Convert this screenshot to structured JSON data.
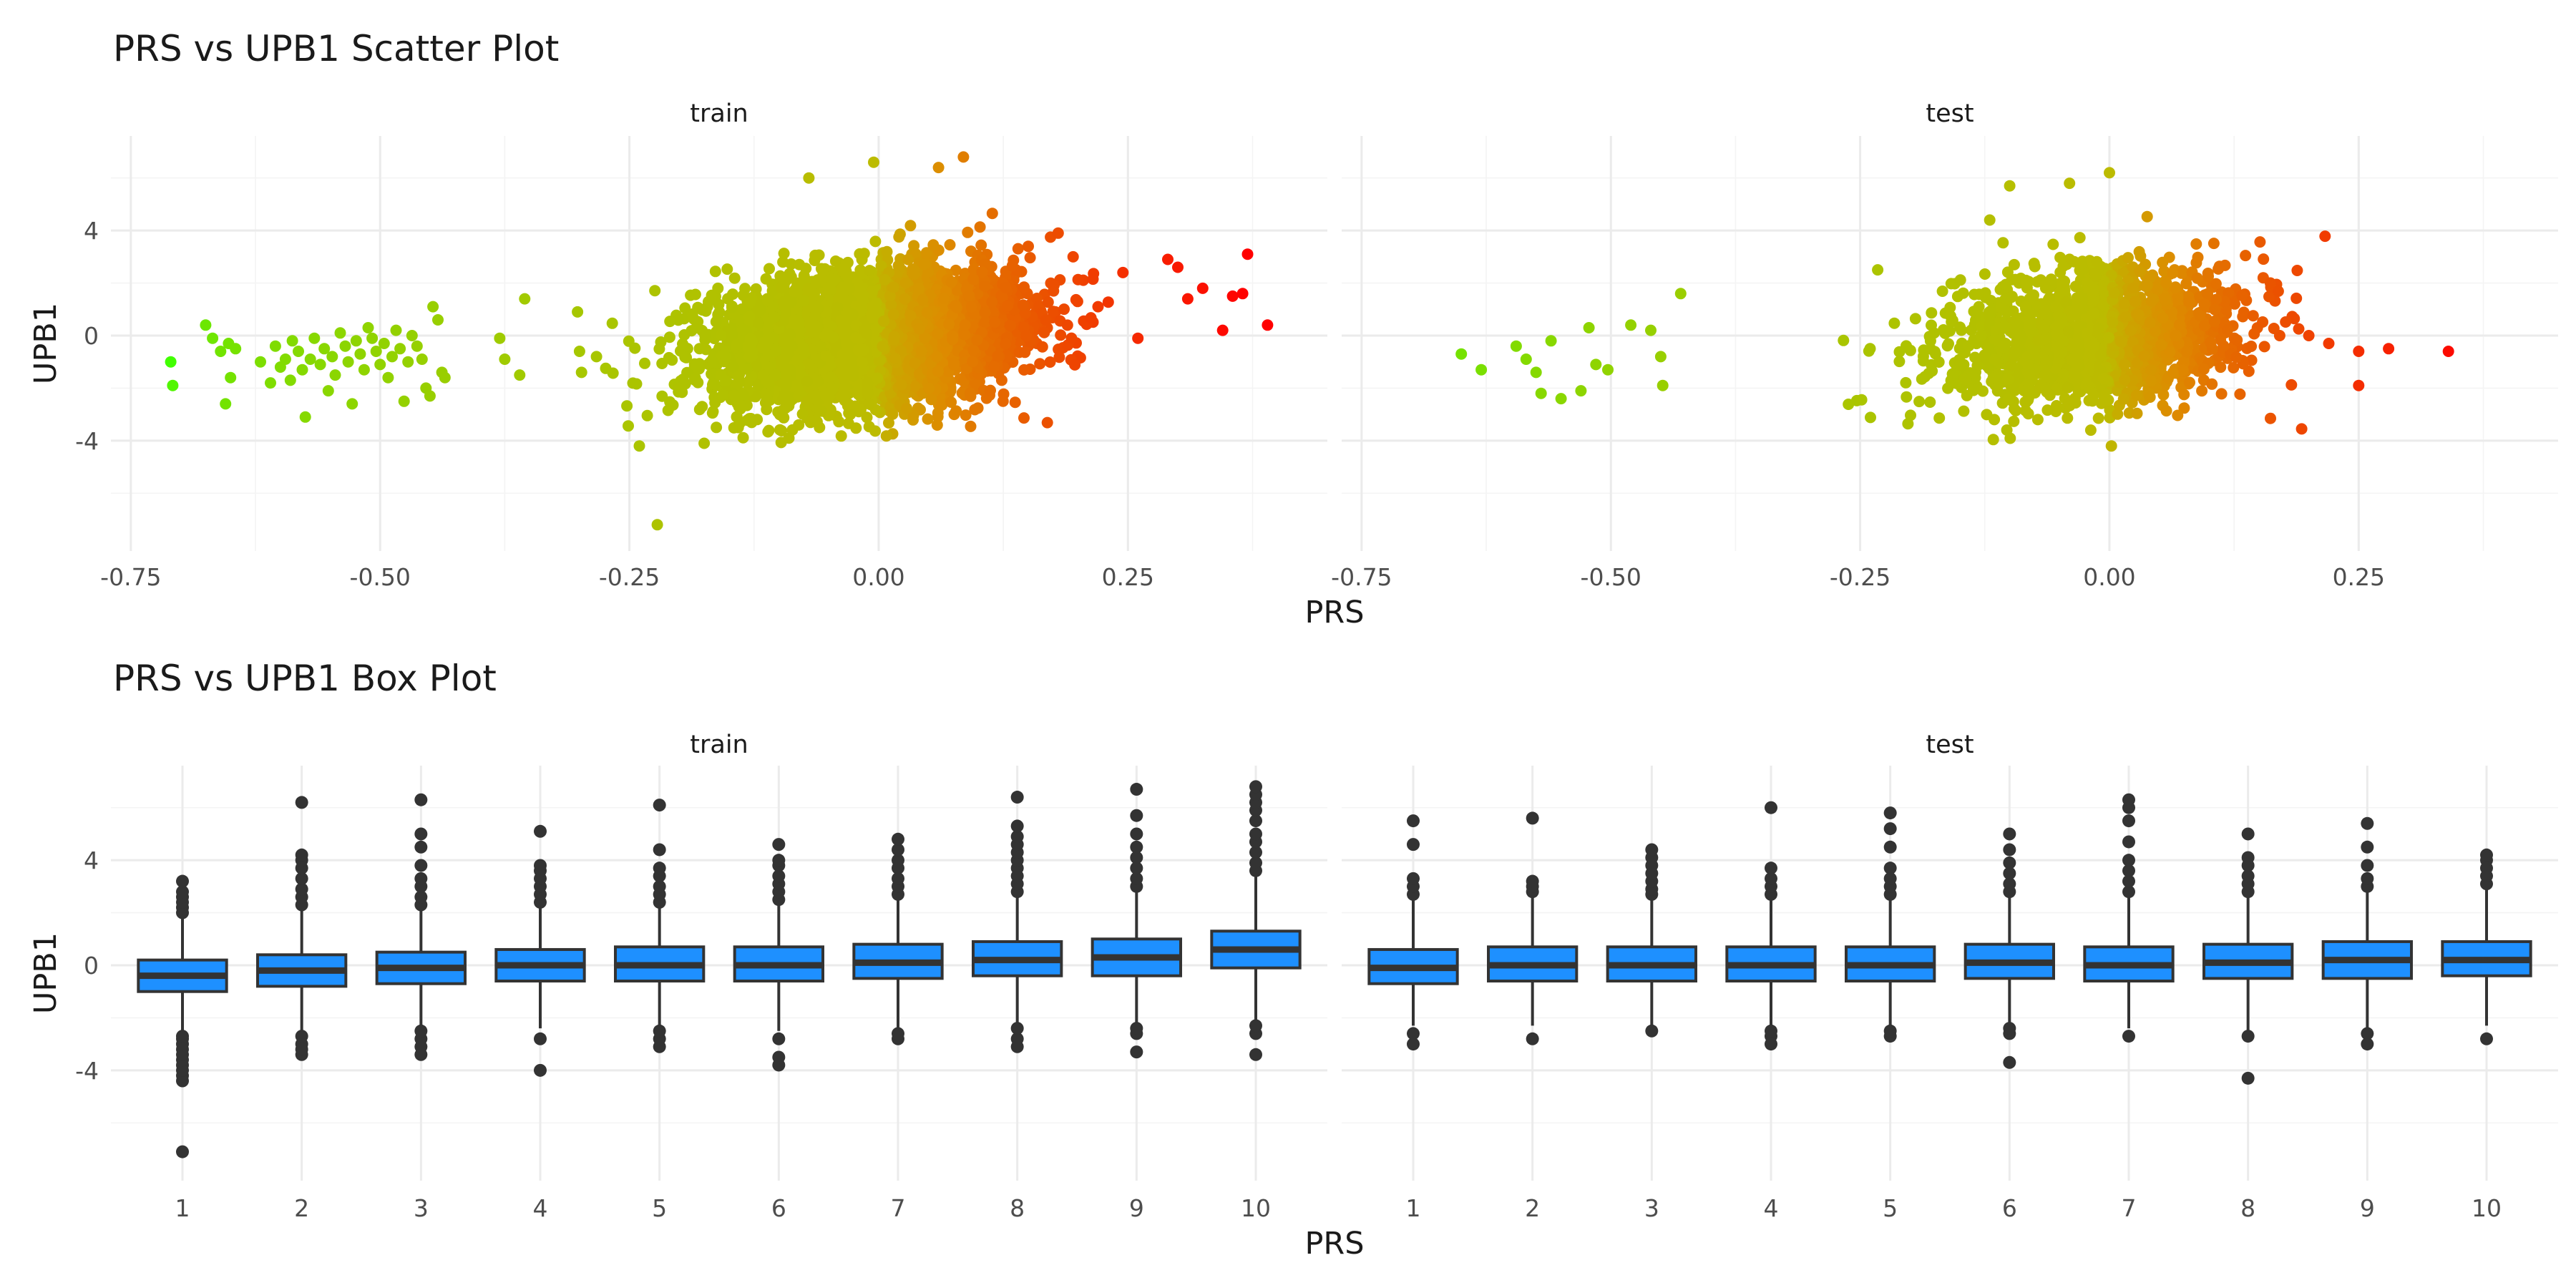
{
  "colors": {
    "low": "#41ff00",
    "mid": "#bcbb00",
    "high": "#ff0000",
    "box_fill": "#1e90ff",
    "box_line": "#333333",
    "outlier": "#333333"
  },
  "chart_data": [
    {
      "type": "scatter",
      "title": "PRS vs UPB1 Scatter Plot",
      "xlabel": "PRS",
      "ylabel": "UPB1",
      "xlim": [
        -0.77,
        0.45
      ],
      "ylim": [
        -8.2,
        7.6
      ],
      "xticks": [
        -0.75,
        -0.5,
        -0.25,
        0.0,
        0.25
      ],
      "xtick_labels": [
        "-0.75",
        "-0.50",
        "-0.25",
        "0.00",
        "0.25"
      ],
      "yticks": [
        -4,
        0,
        4
      ],
      "ytick_labels": [
        "-4",
        "0",
        "4"
      ],
      "grid": true,
      "color_scale": {
        "variable": "PRS",
        "range": [
          -0.71,
          0.37
        ]
      },
      "facets": [
        {
          "label": "train",
          "points": [
            [
              -0.71,
              -1.0
            ],
            [
              -0.708,
              -1.9
            ],
            [
              -0.675,
              0.4
            ],
            [
              -0.668,
              -0.1
            ],
            [
              -0.66,
              -0.6
            ],
            [
              -0.655,
              -2.6
            ],
            [
              -0.652,
              -0.3
            ],
            [
              -0.65,
              -1.6
            ],
            [
              -0.645,
              -0.5
            ],
            [
              -0.62,
              -1.0
            ],
            [
              -0.61,
              -1.8
            ],
            [
              -0.605,
              -0.4
            ],
            [
              -0.6,
              -1.2
            ],
            [
              -0.595,
              -0.9
            ],
            [
              -0.59,
              -1.7
            ],
            [
              -0.588,
              -0.2
            ],
            [
              -0.582,
              -0.6
            ],
            [
              -0.578,
              -1.3
            ],
            [
              -0.575,
              -3.1
            ],
            [
              -0.57,
              -0.9
            ],
            [
              -0.566,
              -0.1
            ],
            [
              -0.56,
              -1.1
            ],
            [
              -0.556,
              -0.5
            ],
            [
              -0.552,
              -2.1
            ],
            [
              -0.548,
              -0.8
            ],
            [
              -0.545,
              -1.5
            ],
            [
              -0.54,
              0.1
            ],
            [
              -0.535,
              -0.4
            ],
            [
              -0.532,
              -1.0
            ],
            [
              -0.528,
              -2.6
            ],
            [
              -0.524,
              -0.2
            ],
            [
              -0.52,
              -0.7
            ],
            [
              -0.516,
              -1.3
            ],
            [
              -0.512,
              0.3
            ],
            [
              -0.508,
              -0.1
            ],
            [
              -0.504,
              -0.6
            ],
            [
              -0.5,
              -1.1
            ],
            [
              -0.496,
              -0.3
            ],
            [
              -0.492,
              -1.6
            ],
            [
              -0.488,
              -0.8
            ],
            [
              -0.484,
              0.2
            ],
            [
              -0.48,
              -0.5
            ],
            [
              -0.476,
              -2.5
            ],
            [
              -0.472,
              -1.0
            ],
            [
              -0.468,
              0.0
            ],
            [
              -0.463,
              -0.4
            ],
            [
              -0.458,
              -0.9
            ],
            [
              -0.454,
              -2.0
            ],
            [
              -0.45,
              -2.3
            ],
            [
              -0.447,
              1.1
            ],
            [
              -0.442,
              0.6
            ],
            [
              -0.438,
              -1.4
            ],
            [
              -0.435,
              -1.6
            ],
            [
              -0.38,
              -0.1
            ],
            [
              -0.375,
              -0.9
            ],
            [
              -0.36,
              -1.5
            ],
            [
              -0.355,
              1.4
            ],
            [
              -0.302,
              0.9
            ],
            [
              -0.3,
              -0.6
            ],
            [
              -0.298,
              -1.4
            ],
            [
              -0.283,
              -0.8
            ],
            [
              -0.24,
              -4.2
            ],
            [
              -0.222,
              -7.2
            ],
            [
              -0.175,
              -4.1
            ],
            [
              -0.09,
              -3.9
            ],
            [
              -0.07,
              6.0
            ],
            [
              -0.005,
              6.6
            ],
            [
              0.06,
              6.4
            ],
            [
              0.085,
              6.8
            ],
            [
              0.15,
              3.4
            ],
            [
              0.18,
              3.9
            ],
            [
              0.195,
              3.0
            ],
            [
              0.22,
              1.1
            ],
            [
              0.245,
              2.4
            ],
            [
              0.26,
              -0.1
            ],
            [
              0.29,
              2.9
            ],
            [
              0.3,
              2.6
            ],
            [
              0.31,
              1.4
            ],
            [
              0.325,
              1.8
            ],
            [
              0.345,
              0.2
            ],
            [
              0.355,
              1.5
            ],
            [
              0.365,
              1.6
            ],
            [
              0.37,
              3.1
            ],
            [
              0.39,
              0.4
            ]
          ]
        },
        {
          "label": "test",
          "points": [
            [
              -0.65,
              -0.7
            ],
            [
              -0.63,
              -1.3
            ],
            [
              -0.595,
              -0.4
            ],
            [
              -0.585,
              -0.9
            ],
            [
              -0.575,
              -1.4
            ],
            [
              -0.57,
              -2.2
            ],
            [
              -0.56,
              -0.2
            ],
            [
              -0.55,
              -2.4
            ],
            [
              -0.53,
              -2.1
            ],
            [
              -0.522,
              0.3
            ],
            [
              -0.515,
              -1.1
            ],
            [
              -0.503,
              -1.3
            ],
            [
              -0.48,
              0.4
            ],
            [
              -0.46,
              0.2
            ],
            [
              -0.45,
              -0.8
            ],
            [
              -0.448,
              -1.9
            ],
            [
              -0.43,
              1.6
            ],
            [
              -0.24,
              -0.5
            ],
            [
              -0.12,
              4.4
            ],
            [
              -0.1,
              5.7
            ],
            [
              -0.04,
              5.8
            ],
            [
              0.0,
              6.2
            ],
            [
              0.002,
              -4.2
            ],
            [
              0.2,
              0.0
            ],
            [
              0.22,
              -0.3
            ],
            [
              0.25,
              -0.6
            ],
            [
              0.25,
              -1.9
            ],
            [
              0.28,
              -0.5
            ],
            [
              0.34,
              -0.6
            ]
          ]
        }
      ]
    },
    {
      "type": "box",
      "title": "PRS vs UPB1 Box Plot",
      "xlabel": "PRS",
      "ylabel": "UPB1",
      "categories": [
        "1",
        "2",
        "3",
        "4",
        "5",
        "6",
        "7",
        "8",
        "9",
        "10"
      ],
      "ylim": [
        -8.2,
        7.6
      ],
      "yticks": [
        -4,
        0,
        4
      ],
      "ytick_labels": [
        "-4",
        "0",
        "4"
      ],
      "grid": true,
      "facets": [
        {
          "label": "train",
          "boxes": [
            {
              "q1": -1.0,
              "median": -0.4,
              "q3": 0.2,
              "whisker_low": -2.5,
              "whisker_high": 1.9,
              "outliers": [
                -7.1,
                -4.4,
                -4.2,
                -4.0,
                -3.8,
                -3.6,
                -3.4,
                -3.2,
                -3.0,
                -2.8,
                -2.7,
                2.0,
                2.2,
                2.4,
                2.6,
                2.8,
                3.2
              ]
            },
            {
              "q1": -0.8,
              "median": -0.2,
              "q3": 0.4,
              "whisker_low": -2.5,
              "whisker_high": 2.1,
              "outliers": [
                -3.4,
                -3.2,
                -3.0,
                -2.7,
                2.3,
                2.6,
                2.9,
                3.3,
                3.7,
                4.0,
                4.2,
                6.2
              ]
            },
            {
              "q1": -0.7,
              "median": -0.1,
              "q3": 0.5,
              "whisker_low": -2.3,
              "whisker_high": 2.1,
              "outliers": [
                -3.4,
                -3.1,
                -2.8,
                -2.5,
                2.3,
                2.6,
                3.0,
                3.3,
                3.8,
                4.5,
                5.0,
                6.3
              ]
            },
            {
              "q1": -0.6,
              "median": 0.0,
              "q3": 0.6,
              "whisker_low": -2.4,
              "whisker_high": 2.2,
              "outliers": [
                -4.0,
                -2.8,
                2.4,
                2.7,
                3.0,
                3.3,
                3.6,
                3.8,
                5.1
              ]
            },
            {
              "q1": -0.6,
              "median": 0.0,
              "q3": 0.7,
              "whisker_low": -2.3,
              "whisker_high": 2.2,
              "outliers": [
                -3.1,
                -2.8,
                -2.5,
                2.4,
                2.7,
                3.0,
                3.4,
                3.7,
                4.4,
                6.1
              ]
            },
            {
              "q1": -0.6,
              "median": 0.0,
              "q3": 0.7,
              "whisker_low": -2.5,
              "whisker_high": 2.3,
              "outliers": [
                -3.8,
                -3.5,
                -2.8,
                2.5,
                2.8,
                3.1,
                3.4,
                3.8,
                4.0,
                4.6
              ]
            },
            {
              "q1": -0.5,
              "median": 0.1,
              "q3": 0.8,
              "whisker_low": -2.4,
              "whisker_high": 2.5,
              "outliers": [
                -2.8,
                -2.6,
                2.7,
                3.0,
                3.3,
                3.7,
                4.0,
                4.4,
                4.8
              ]
            },
            {
              "q1": -0.4,
              "median": 0.2,
              "q3": 0.9,
              "whisker_low": -2.3,
              "whisker_high": 2.6,
              "outliers": [
                -3.1,
                -2.8,
                -2.4,
                2.8,
                3.1,
                3.4,
                3.7,
                4.0,
                4.3,
                4.6,
                4.9,
                5.3,
                6.4
              ]
            },
            {
              "q1": -0.4,
              "median": 0.3,
              "q3": 1.0,
              "whisker_low": -2.2,
              "whisker_high": 2.8,
              "outliers": [
                -3.3,
                -2.6,
                -2.4,
                3.0,
                3.3,
                3.7,
                4.1,
                4.5,
                5.0,
                5.7,
                6.7
              ]
            },
            {
              "q1": -0.1,
              "median": 0.6,
              "q3": 1.3,
              "whisker_low": -2.2,
              "whisker_high": 3.4,
              "outliers": [
                -3.4,
                -2.6,
                -2.3,
                3.6,
                3.9,
                4.3,
                4.7,
                5.0,
                5.5,
                5.9,
                6.2,
                6.5,
                6.8
              ]
            }
          ]
        },
        {
          "label": "test",
          "boxes": [
            {
              "q1": -0.7,
              "median": -0.1,
              "q3": 0.6,
              "whisker_low": -2.3,
              "whisker_high": 2.5,
              "outliers": [
                -3.0,
                -2.6,
                2.7,
                3.0,
                3.3,
                4.6,
                5.5
              ]
            },
            {
              "q1": -0.6,
              "median": 0.0,
              "q3": 0.7,
              "whisker_low": -2.3,
              "whisker_high": 2.6,
              "outliers": [
                -2.8,
                2.8,
                3.0,
                3.2,
                5.6
              ]
            },
            {
              "q1": -0.6,
              "median": 0.0,
              "q3": 0.7,
              "whisker_low": -2.3,
              "whisker_high": 2.5,
              "outliers": [
                -2.5,
                2.7,
                2.9,
                3.2,
                3.5,
                3.8,
                4.1,
                4.4
              ]
            },
            {
              "q1": -0.6,
              "median": 0.0,
              "q3": 0.7,
              "whisker_low": -2.3,
              "whisker_high": 2.5,
              "outliers": [
                -3.0,
                -2.7,
                -2.5,
                2.7,
                3.0,
                3.3,
                3.7,
                6.0
              ]
            },
            {
              "q1": -0.6,
              "median": 0.0,
              "q3": 0.7,
              "whisker_low": -2.3,
              "whisker_high": 2.5,
              "outliers": [
                -2.7,
                -2.5,
                2.7,
                3.0,
                3.3,
                3.7,
                4.5,
                5.2,
                5.8
              ]
            },
            {
              "q1": -0.5,
              "median": 0.1,
              "q3": 0.8,
              "whisker_low": -2.3,
              "whisker_high": 2.6,
              "outliers": [
                -3.7,
                -2.6,
                -2.4,
                2.8,
                3.1,
                3.5,
                3.9,
                4.4,
                5.0
              ]
            },
            {
              "q1": -0.6,
              "median": 0.0,
              "q3": 0.7,
              "whisker_low": -2.4,
              "whisker_high": 2.6,
              "outliers": [
                -2.7,
                2.8,
                3.2,
                3.6,
                4.0,
                4.7,
                5.5,
                6.0,
                6.3
              ]
            },
            {
              "q1": -0.5,
              "median": 0.1,
              "q3": 0.8,
              "whisker_low": -2.5,
              "whisker_high": 2.6,
              "outliers": [
                -4.3,
                -2.7,
                2.8,
                3.1,
                3.4,
                3.8,
                4.1,
                5.0
              ]
            },
            {
              "q1": -0.5,
              "median": 0.2,
              "q3": 0.9,
              "whisker_low": -2.4,
              "whisker_high": 2.8,
              "outliers": [
                -3.0,
                -2.6,
                3.0,
                3.3,
                3.8,
                4.5,
                5.4
              ]
            },
            {
              "q1": -0.4,
              "median": 0.2,
              "q3": 0.9,
              "whisker_low": -2.3,
              "whisker_high": 2.9,
              "outliers": [
                -2.8,
                3.1,
                3.4,
                3.7,
                4.0,
                4.2
              ]
            }
          ]
        }
      ]
    }
  ]
}
